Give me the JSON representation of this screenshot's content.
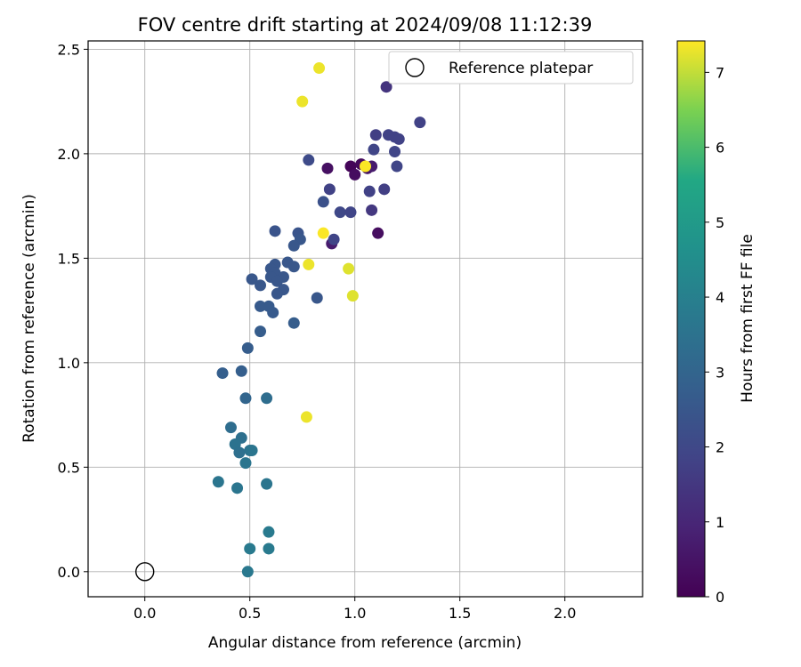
{
  "chart_data": {
    "type": "scatter",
    "title": "FOV centre drift starting at 2024/09/08 11:12:39",
    "xlabel": "Angular distance from reference (arcmin)",
    "ylabel": "Rotation from reference (arcmin)",
    "xlim": [
      -0.27,
      2.37
    ],
    "ylim": [
      -0.12,
      2.54
    ],
    "xticks": [
      "0.0",
      "0.5",
      "1.0",
      "1.5",
      "2.0"
    ],
    "xtick_values": [
      0.0,
      0.5,
      1.0,
      1.5,
      2.0
    ],
    "yticks": [
      "0.0",
      "0.5",
      "1.0",
      "1.5",
      "2.0",
      "2.5"
    ],
    "ytick_values": [
      0.0,
      0.5,
      1.0,
      1.5,
      2.0,
      2.5
    ],
    "grid": true,
    "legend": {
      "placement": "top-right",
      "entries": [
        "Reference platepar"
      ]
    },
    "reference_point": {
      "x": 0.0,
      "y": 0.0,
      "label": "Reference platepar"
    },
    "colorbar": {
      "label": "Hours from first FF file",
      "range": [
        0,
        7.42
      ],
      "ticks": [
        "0",
        "1",
        "2",
        "3",
        "4",
        "5",
        "6",
        "7"
      ],
      "tick_values": [
        0,
        1,
        2,
        3,
        4,
        5,
        6,
        7
      ],
      "colormap": "viridis"
    },
    "points": [
      {
        "x": 0.98,
        "y": 1.94,
        "c": 0.1
      },
      {
        "x": 1.03,
        "y": 1.95,
        "c": 0.2
      },
      {
        "x": 1.0,
        "y": 1.9,
        "c": 0.3
      },
      {
        "x": 0.87,
        "y": 1.93,
        "c": 0.4
      },
      {
        "x": 1.11,
        "y": 1.62,
        "c": 0.35
      },
      {
        "x": 1.06,
        "y": 1.93,
        "c": 0.5
      },
      {
        "x": 1.08,
        "y": 1.94,
        "c": 0.7
      },
      {
        "x": 0.89,
        "y": 1.57,
        "c": 0.7
      },
      {
        "x": 1.15,
        "y": 2.32,
        "c": 1.4
      },
      {
        "x": 1.1,
        "y": 2.09,
        "c": 1.7
      },
      {
        "x": 1.16,
        "y": 2.09,
        "c": 1.8
      },
      {
        "x": 1.19,
        "y": 2.08,
        "c": 1.8
      },
      {
        "x": 1.21,
        "y": 2.07,
        "c": 1.8
      },
      {
        "x": 1.31,
        "y": 2.15,
        "c": 1.8
      },
      {
        "x": 1.09,
        "y": 2.02,
        "c": 1.9
      },
      {
        "x": 1.19,
        "y": 2.01,
        "c": 1.9
      },
      {
        "x": 1.2,
        "y": 1.94,
        "c": 1.9
      },
      {
        "x": 1.14,
        "y": 1.83,
        "c": 1.7
      },
      {
        "x": 1.07,
        "y": 1.82,
        "c": 1.8
      },
      {
        "x": 1.08,
        "y": 1.73,
        "c": 1.5
      },
      {
        "x": 0.88,
        "y": 1.83,
        "c": 1.8
      },
      {
        "x": 0.93,
        "y": 1.72,
        "c": 2.0
      },
      {
        "x": 0.98,
        "y": 1.72,
        "c": 1.9
      },
      {
        "x": 0.9,
        "y": 1.59,
        "c": 1.9
      },
      {
        "x": 0.78,
        "y": 1.97,
        "c": 2.1
      },
      {
        "x": 0.85,
        "y": 1.77,
        "c": 2.3
      },
      {
        "x": 0.62,
        "y": 1.63,
        "c": 2.4
      },
      {
        "x": 0.73,
        "y": 1.62,
        "c": 2.4
      },
      {
        "x": 0.74,
        "y": 1.59,
        "c": 2.5
      },
      {
        "x": 0.71,
        "y": 1.56,
        "c": 2.5
      },
      {
        "x": 0.68,
        "y": 1.48,
        "c": 2.5
      },
      {
        "x": 0.62,
        "y": 1.47,
        "c": 2.5
      },
      {
        "x": 0.6,
        "y": 1.45,
        "c": 2.5
      },
      {
        "x": 0.71,
        "y": 1.46,
        "c": 2.5
      },
      {
        "x": 0.62,
        "y": 1.43,
        "c": 2.5
      },
      {
        "x": 0.6,
        "y": 1.41,
        "c": 2.5
      },
      {
        "x": 0.66,
        "y": 1.41,
        "c": 2.5
      },
      {
        "x": 0.63,
        "y": 1.39,
        "c": 2.5
      },
      {
        "x": 0.51,
        "y": 1.4,
        "c": 2.5
      },
      {
        "x": 0.55,
        "y": 1.37,
        "c": 2.5
      },
      {
        "x": 0.66,
        "y": 1.35,
        "c": 2.5
      },
      {
        "x": 0.63,
        "y": 1.33,
        "c": 2.5
      },
      {
        "x": 0.82,
        "y": 1.31,
        "c": 2.5
      },
      {
        "x": 0.55,
        "y": 1.27,
        "c": 2.6
      },
      {
        "x": 0.59,
        "y": 1.27,
        "c": 2.6
      },
      {
        "x": 0.61,
        "y": 1.24,
        "c": 2.6
      },
      {
        "x": 0.71,
        "y": 1.19,
        "c": 2.7
      },
      {
        "x": 0.55,
        "y": 1.15,
        "c": 2.7
      },
      {
        "x": 0.49,
        "y": 1.07,
        "c": 2.7
      },
      {
        "x": 0.37,
        "y": 0.95,
        "c": 2.8
      },
      {
        "x": 0.46,
        "y": 0.96,
        "c": 2.8
      },
      {
        "x": 0.48,
        "y": 0.83,
        "c": 3.0
      },
      {
        "x": 0.58,
        "y": 0.83,
        "c": 3.3
      },
      {
        "x": 0.41,
        "y": 0.69,
        "c": 3.3
      },
      {
        "x": 0.46,
        "y": 0.64,
        "c": 3.4
      },
      {
        "x": 0.43,
        "y": 0.61,
        "c": 3.5
      },
      {
        "x": 0.45,
        "y": 0.57,
        "c": 3.4
      },
      {
        "x": 0.5,
        "y": 0.58,
        "c": 3.5
      },
      {
        "x": 0.51,
        "y": 0.58,
        "c": 3.6
      },
      {
        "x": 0.48,
        "y": 0.52,
        "c": 3.6
      },
      {
        "x": 0.35,
        "y": 0.43,
        "c": 3.6
      },
      {
        "x": 0.44,
        "y": 0.4,
        "c": 3.6
      },
      {
        "x": 0.58,
        "y": 0.42,
        "c": 3.6
      },
      {
        "x": 0.59,
        "y": 0.19,
        "c": 3.8
      },
      {
        "x": 0.5,
        "y": 0.11,
        "c": 3.8
      },
      {
        "x": 0.59,
        "y": 0.11,
        "c": 3.8
      },
      {
        "x": 0.49,
        "y": 0.0,
        "c": 3.7
      },
      {
        "x": 0.83,
        "y": 2.41,
        "c": 7.3
      },
      {
        "x": 0.75,
        "y": 2.25,
        "c": 7.3
      },
      {
        "x": 1.05,
        "y": 1.94,
        "c": 7.4
      },
      {
        "x": 0.85,
        "y": 1.62,
        "c": 7.4
      },
      {
        "x": 0.78,
        "y": 1.47,
        "c": 7.3
      },
      {
        "x": 0.97,
        "y": 1.45,
        "c": 7.2
      },
      {
        "x": 0.99,
        "y": 1.32,
        "c": 7.2
      },
      {
        "x": 0.77,
        "y": 0.74,
        "c": 7.3
      }
    ]
  }
}
